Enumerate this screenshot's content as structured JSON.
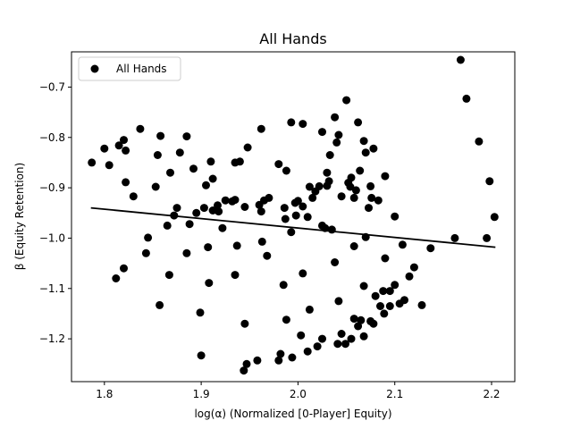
{
  "chart_data": {
    "type": "scatter",
    "title": "All Hands",
    "xlabel": "log(α) (Normalized [0-Player] Equity)",
    "ylabel": "β (Equity Retention)",
    "xlim": [
      1.766,
      2.224
    ],
    "ylim": [
      -1.285,
      -0.63
    ],
    "xticks": [
      1.8,
      1.9,
      2.0,
      2.1,
      2.2
    ],
    "xtick_labels": [
      "1.8",
      "1.9",
      "2.0",
      "2.1",
      "2.2"
    ],
    "yticks": [
      -1.2,
      -1.1,
      -1.0,
      -0.9,
      -0.8,
      -0.7
    ],
    "ytick_labels": [
      "−1.2",
      "−1.1",
      "−1.0",
      "−0.9",
      "−0.8",
      "−0.7"
    ],
    "grid": false,
    "legend": {
      "position": "top-left",
      "entries": [
        "All Hands"
      ]
    },
    "colors": {
      "points": "#000000",
      "fit_line": "#000000"
    },
    "series": [
      {
        "name": "All Hands",
        "kind": "scatter",
        "points": [
          [
            1.787,
            -0.85
          ],
          [
            1.8,
            -0.822
          ],
          [
            1.805,
            -0.855
          ],
          [
            1.815,
            -0.816
          ],
          [
            1.82,
            -0.805
          ],
          [
            1.822,
            -0.826
          ],
          [
            1.822,
            -0.889
          ],
          [
            1.83,
            -0.917
          ],
          [
            1.837,
            -0.783
          ],
          [
            1.855,
            -0.835
          ],
          [
            1.858,
            -0.797
          ],
          [
            1.868,
            -0.87
          ],
          [
            1.878,
            -0.83
          ],
          [
            1.885,
            -0.798
          ],
          [
            1.892,
            -0.862
          ],
          [
            1.905,
            -0.895
          ],
          [
            1.91,
            -0.848
          ],
          [
            1.912,
            -0.882
          ],
          [
            1.935,
            -0.85
          ],
          [
            1.94,
            -0.848
          ],
          [
            1.948,
            -0.82
          ],
          [
            1.962,
            -0.783
          ],
          [
            1.97,
            -0.92
          ],
          [
            1.98,
            -0.853
          ],
          [
            1.988,
            -0.866
          ],
          [
            1.993,
            -0.77
          ],
          [
            2.0,
            -0.926
          ],
          [
            2.005,
            -0.773
          ],
          [
            2.012,
            -0.898
          ],
          [
            2.025,
            -0.789
          ],
          [
            2.03,
            -0.87
          ],
          [
            2.033,
            -0.835
          ],
          [
            2.038,
            -0.76
          ],
          [
            2.04,
            -0.81
          ],
          [
            2.042,
            -0.795
          ],
          [
            2.045,
            -0.917
          ],
          [
            2.05,
            -0.726
          ],
          [
            2.055,
            -0.88
          ],
          [
            2.058,
            -0.92
          ],
          [
            2.062,
            -0.77
          ],
          [
            2.064,
            -0.866
          ],
          [
            2.068,
            -0.807
          ],
          [
            2.07,
            -0.83
          ],
          [
            2.073,
            -0.94
          ],
          [
            2.075,
            -0.897
          ],
          [
            2.076,
            -0.92
          ],
          [
            2.078,
            -0.822
          ],
          [
            2.083,
            -0.925
          ],
          [
            2.09,
            -0.877
          ],
          [
            2.1,
            -0.957
          ],
          [
            2.162,
            -1.0
          ],
          [
            2.168,
            -0.646
          ],
          [
            2.174,
            -0.723
          ],
          [
            2.187,
            -0.808
          ],
          [
            2.198,
            -0.887
          ],
          [
            2.203,
            -0.958
          ],
          [
            2.195,
            -1.0
          ],
          [
            1.812,
            -1.08
          ],
          [
            1.82,
            -1.06
          ],
          [
            1.843,
            -1.03
          ],
          [
            1.845,
            -0.999
          ],
          [
            1.853,
            -0.898
          ],
          [
            1.857,
            -1.133
          ],
          [
            1.865,
            -0.975
          ],
          [
            1.867,
            -1.073
          ],
          [
            1.872,
            -0.955
          ],
          [
            1.875,
            -0.94
          ],
          [
            1.885,
            -1.03
          ],
          [
            1.888,
            -0.972
          ],
          [
            1.895,
            -0.95
          ],
          [
            1.899,
            -1.148
          ],
          [
            1.9,
            -1.233
          ],
          [
            1.903,
            -0.94
          ],
          [
            1.907,
            -1.018
          ],
          [
            1.908,
            -1.089
          ],
          [
            1.912,
            -0.945
          ],
          [
            1.917,
            -0.935
          ],
          [
            1.918,
            -0.947
          ],
          [
            1.922,
            -0.98
          ],
          [
            1.925,
            -0.925
          ],
          [
            1.932,
            -0.927
          ],
          [
            1.935,
            -0.924
          ],
          [
            1.935,
            -1.073
          ],
          [
            1.937,
            -1.015
          ],
          [
            1.945,
            -1.17
          ],
          [
            1.947,
            -1.25
          ],
          [
            1.944,
            -1.263
          ],
          [
            1.945,
            -0.938
          ],
          [
            1.958,
            -1.243
          ],
          [
            1.96,
            -0.934
          ],
          [
            1.962,
            -0.947
          ],
          [
            1.963,
            -1.007
          ],
          [
            1.965,
            -0.925
          ],
          [
            1.968,
            -1.035
          ],
          [
            1.98,
            -1.243
          ],
          [
            1.982,
            -1.23
          ],
          [
            1.985,
            -1.093
          ],
          [
            1.986,
            -0.94
          ],
          [
            1.987,
            -0.962
          ],
          [
            1.988,
            -1.162
          ],
          [
            1.993,
            -0.988
          ],
          [
            1.994,
            -1.237
          ],
          [
            1.997,
            -0.93
          ],
          [
            1.998,
            -0.955
          ],
          [
            2.003,
            -1.193
          ],
          [
            2.005,
            -1.07
          ],
          [
            2.005,
            -0.937
          ],
          [
            2.01,
            -1.225
          ],
          [
            2.01,
            -0.958
          ],
          [
            2.012,
            -1.142
          ],
          [
            2.015,
            -0.92
          ],
          [
            2.018,
            -0.907
          ],
          [
            2.02,
            -1.215
          ],
          [
            2.022,
            -0.897
          ],
          [
            2.025,
            -1.2
          ],
          [
            2.025,
            -0.975
          ],
          [
            2.028,
            -0.98
          ],
          [
            2.03,
            -0.896
          ],
          [
            2.032,
            -0.887
          ],
          [
            2.035,
            -0.983
          ],
          [
            2.038,
            -1.048
          ],
          [
            2.041,
            -1.21
          ],
          [
            2.042,
            -1.125
          ],
          [
            2.045,
            -1.19
          ],
          [
            2.049,
            -1.21
          ],
          [
            2.052,
            -0.89
          ],
          [
            2.054,
            -0.898
          ],
          [
            2.055,
            -1.2
          ],
          [
            2.058,
            -1.16
          ],
          [
            2.058,
            -1.016
          ],
          [
            2.06,
            -0.905
          ],
          [
            2.062,
            -1.175
          ],
          [
            2.065,
            -1.163
          ],
          [
            2.068,
            -1.095
          ],
          [
            2.068,
            -1.195
          ],
          [
            2.07,
            -0.998
          ],
          [
            2.075,
            -1.165
          ],
          [
            2.078,
            -1.17
          ],
          [
            2.08,
            -1.115
          ],
          [
            2.085,
            -1.135
          ],
          [
            2.088,
            -1.105
          ],
          [
            2.089,
            -1.15
          ],
          [
            2.09,
            -1.04
          ],
          [
            2.095,
            -1.135
          ],
          [
            2.095,
            -1.105
          ],
          [
            2.1,
            -1.093
          ],
          [
            2.105,
            -1.13
          ],
          [
            2.108,
            -1.013
          ],
          [
            2.11,
            -1.123
          ],
          [
            2.115,
            -1.076
          ],
          [
            2.12,
            -1.058
          ],
          [
            2.128,
            -1.133
          ],
          [
            2.137,
            -1.02
          ]
        ]
      },
      {
        "name": "",
        "kind": "line",
        "points": [
          [
            1.786,
            -0.94
          ],
          [
            2.204,
            -1.018
          ]
        ]
      }
    ]
  }
}
